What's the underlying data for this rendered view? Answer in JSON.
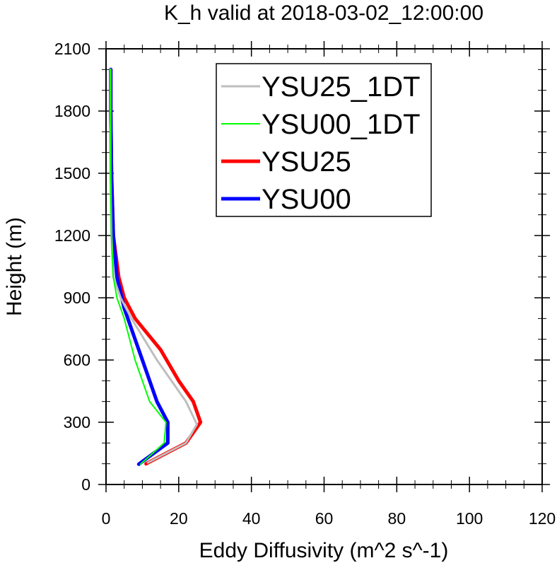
{
  "chart_data": {
    "type": "line",
    "title": "K_h valid at 2018-03-02_12:00:00",
    "xlabel": "Eddy Diffusivity (m^2 s^-1)",
    "ylabel": "Height (m)",
    "xlim": [
      0,
      120
    ],
    "ylim": [
      0,
      2100
    ],
    "xticks": [
      0,
      20,
      40,
      60,
      80,
      100,
      120
    ],
    "yticks": [
      0,
      300,
      600,
      900,
      1200,
      1500,
      1800,
      2100
    ],
    "xtick_labels": [
      "0",
      "20",
      "40",
      "60",
      "80",
      "100",
      "120"
    ],
    "ytick_labels": [
      "0",
      "300",
      "600",
      "900",
      "1200",
      "1500",
      "1800",
      "2100"
    ],
    "grid": false,
    "legend_position": "top-center",
    "series": [
      {
        "name": "YSU25_1DT",
        "color": "#bebebe",
        "points": [
          [
            11.5,
            105
          ],
          [
            22,
            200
          ],
          [
            25,
            290
          ],
          [
            22,
            400
          ],
          [
            14,
            600
          ],
          [
            7,
            800
          ],
          [
            4,
            900
          ],
          [
            2,
            1000
          ],
          [
            1.5,
            1200
          ],
          [
            1.2,
            1500
          ],
          [
            1.2,
            1800
          ],
          [
            1.2,
            2000
          ]
        ]
      },
      {
        "name": "YSU00_1DT",
        "color": "#00ff00",
        "points": [
          [
            9.5,
            98
          ],
          [
            16,
            200
          ],
          [
            16.5,
            300
          ],
          [
            12,
            400
          ],
          [
            10,
            500
          ],
          [
            8,
            600
          ],
          [
            5,
            800
          ],
          [
            3,
            900
          ],
          [
            2,
            1000
          ],
          [
            1.5,
            1200
          ],
          [
            1.2,
            1500
          ],
          [
            1.2,
            1800
          ],
          [
            1.2,
            2000
          ]
        ]
      },
      {
        "name": "YSU25",
        "color": "#ff0000",
        "points": [
          [
            11,
            100
          ],
          [
            22,
            200
          ],
          [
            26,
            300
          ],
          [
            24,
            400
          ],
          [
            20,
            500
          ],
          [
            15,
            650
          ],
          [
            8,
            800
          ],
          [
            5,
            900
          ],
          [
            3.5,
            1000
          ],
          [
            2,
            1200
          ],
          [
            1.5,
            1500
          ],
          [
            1.3,
            1800
          ],
          [
            1.3,
            2000
          ]
        ]
      },
      {
        "name": "YSU00",
        "color": "#0000ff",
        "points": [
          [
            9,
            98
          ],
          [
            17,
            200
          ],
          [
            17,
            300
          ],
          [
            14,
            400
          ],
          [
            12,
            500
          ],
          [
            10,
            600
          ],
          [
            8,
            700
          ],
          [
            5,
            850
          ],
          [
            3,
            1000
          ],
          [
            2,
            1200
          ],
          [
            1.5,
            1500
          ],
          [
            1.3,
            1800
          ],
          [
            1.3,
            2000
          ]
        ]
      }
    ]
  }
}
